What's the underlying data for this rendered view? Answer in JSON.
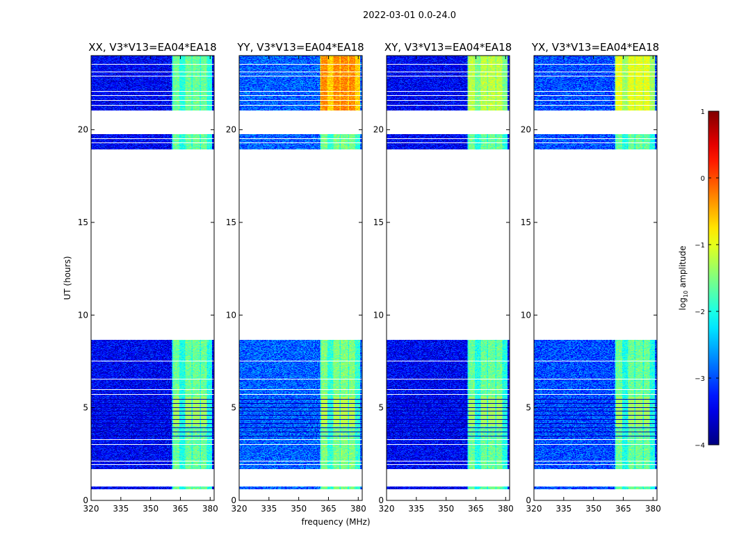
{
  "chart_data": {
    "type": "heatmap",
    "suptitle": "2022-03-01 0.0-24.0",
    "xlabel": "frequency (MHz)",
    "ylabel": "UT (hours)",
    "xlim": [
      320,
      382
    ],
    "ylim": [
      0,
      24
    ],
    "xticks": [
      320,
      335,
      350,
      365,
      380
    ],
    "yticks": [
      0,
      5,
      10,
      15,
      20
    ],
    "xtick_labels": [
      "320",
      "335",
      "350",
      "365",
      "380"
    ],
    "ytick_labels": [
      "0",
      "5",
      "10",
      "15",
      "20"
    ],
    "colorbar": {
      "label": "log10 amplitude",
      "label_base": "log",
      "label_sub": "10",
      "label_rest": " amplitude",
      "range": [
        -4,
        1
      ],
      "ticks": [
        1,
        0,
        -1,
        -2,
        -3,
        -4
      ],
      "tick_labels": [
        "1",
        "0",
        "−1",
        "−2",
        "−3",
        "−4"
      ],
      "colormap": "jet"
    },
    "data_time_ranges_hours": [
      [
        0.6,
        0.75
      ],
      [
        1.7,
        8.65
      ],
      [
        18.95,
        19.75
      ],
      [
        21.05,
        24.0
      ]
    ],
    "rfi_band_mhz": [
      361,
      381
    ],
    "panels": [
      {
        "name": "XX",
        "title": "XX, V3*V13=EA04*EA18",
        "base_level": -3.4,
        "rfi_level": -2.0,
        "rfi_peak": -1.6
      },
      {
        "name": "YY",
        "title": "YY, V3*V13=EA04*EA18",
        "base_level": -2.9,
        "rfi_level": -1.9,
        "rfi_peak": -0.3
      },
      {
        "name": "XY",
        "title": "XY, V3*V13=EA04*EA18",
        "base_level": -3.4,
        "rfi_level": -2.0,
        "rfi_peak": -1.2
      },
      {
        "name": "YX",
        "title": "YX, V3*V13=EA04*EA18",
        "base_level": -3.0,
        "rfi_level": -2.0,
        "rfi_peak": -1.0
      }
    ]
  }
}
